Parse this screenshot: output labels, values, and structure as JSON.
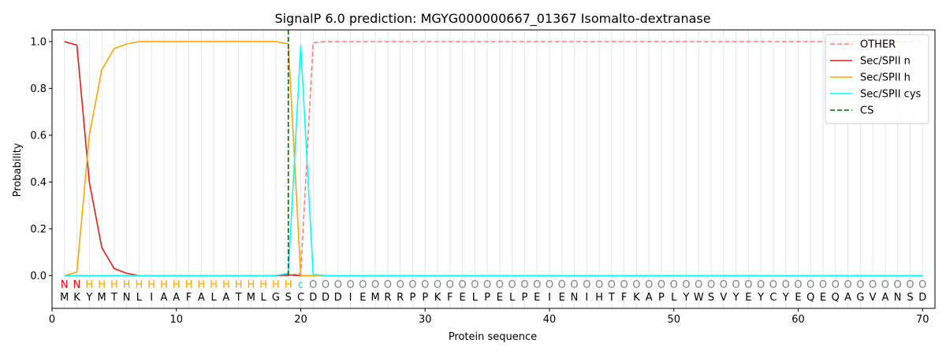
{
  "chart_data": {
    "type": "line",
    "title": "SignalP 6.0 prediction: MGYG000000667_01367 Isomalto-dextranase",
    "xlabel": "Protein sequence",
    "ylabel": "Probability",
    "xlim": [
      0,
      71
    ],
    "ylim": [
      -0.14,
      1.05
    ],
    "xticks": [
      0,
      10,
      20,
      30,
      40,
      50,
      60,
      70
    ],
    "yticks": [
      0.0,
      0.2,
      0.4,
      0.6,
      0.8,
      1.0
    ],
    "xtick_labels": [
      "0",
      "10",
      "20",
      "30",
      "40",
      "50",
      "60",
      "70"
    ],
    "ytick_labels": [
      "0.0",
      "0.2",
      "0.4",
      "0.6",
      "0.8",
      "1.0"
    ],
    "grid": "vertical lines at each residue",
    "legend_position": "top-right",
    "sequence": "MKYMTNLIAAFALATMLGSCDDDIEMRRPPKFELPELPEIENIHTFKAPLYWSVYEYCYEQEQAGVANSD",
    "labels": "NNHHHHHHHHHHHHHHHHHcOOOOOOOOOOOOOOOOOOOOOOOOOOOOOOOOOOOOOOOOOOOOOOOOOO",
    "label_colors": {
      "N": "#ff0000",
      "H": "#ffa500",
      "c": "#00e5e5",
      "O": "#808080"
    },
    "cleavage_site": 19,
    "series": [
      {
        "name": "OTHER",
        "color": "#f08080",
        "dash": "dashed",
        "x": [
          1,
          2,
          3,
          4,
          5,
          6,
          7,
          8,
          9,
          10,
          11,
          12,
          13,
          14,
          15,
          16,
          17,
          18,
          19,
          20,
          21,
          22,
          23,
          24,
          25,
          26,
          27,
          28,
          29,
          30,
          31,
          32,
          33,
          34,
          35,
          36,
          37,
          38,
          39,
          40,
          41,
          42,
          43,
          44,
          45,
          46,
          47,
          48,
          49,
          50,
          51,
          52,
          53,
          54,
          55,
          56,
          57,
          58,
          59,
          60,
          61,
          62,
          63,
          64,
          65,
          66,
          67,
          68,
          69,
          70
        ],
        "y": [
          0,
          0,
          0,
          0,
          0,
          0,
          0,
          0,
          0,
          0,
          0,
          0,
          0,
          0,
          0,
          0,
          0,
          0,
          0,
          0.01,
          0.995,
          1,
          1,
          1,
          1,
          1,
          1,
          1,
          1,
          1,
          1,
          1,
          1,
          1,
          1,
          1,
          1,
          1,
          1,
          1,
          1,
          1,
          1,
          1,
          1,
          1,
          1,
          1,
          1,
          1,
          1,
          1,
          1,
          1,
          1,
          1,
          1,
          1,
          1,
          1,
          1,
          1,
          1,
          1,
          1,
          1,
          1,
          1,
          1,
          1
        ]
      },
      {
        "name": "Sec/SPII n",
        "color": "#e41a1c",
        "dash": "solid",
        "x": [
          1,
          2,
          3,
          4,
          5,
          6,
          7,
          8,
          9,
          10,
          11,
          12,
          13,
          14,
          15,
          16,
          17,
          18,
          19,
          20,
          21,
          22,
          23,
          24,
          25,
          26,
          27,
          28,
          29,
          30,
          31,
          32,
          33,
          34,
          35,
          36,
          37,
          38,
          39,
          40,
          41,
          42,
          43,
          44,
          45,
          46,
          47,
          48,
          49,
          50,
          51,
          52,
          53,
          54,
          55,
          56,
          57,
          58,
          59,
          60,
          61,
          62,
          63,
          64,
          65,
          66,
          67,
          68,
          69,
          70
        ],
        "y": [
          1.0,
          0.985,
          0.4,
          0.12,
          0.03,
          0.01,
          0,
          0,
          0,
          0,
          0,
          0,
          0,
          0,
          0,
          0,
          0,
          0,
          0.003,
          0,
          0,
          0,
          0,
          0,
          0,
          0,
          0,
          0,
          0,
          0,
          0,
          0,
          0,
          0,
          0,
          0,
          0,
          0,
          0,
          0,
          0,
          0,
          0,
          0,
          0,
          0,
          0,
          0,
          0,
          0,
          0,
          0,
          0,
          0,
          0,
          0,
          0,
          0,
          0,
          0,
          0,
          0,
          0,
          0,
          0,
          0,
          0,
          0,
          0,
          0
        ]
      },
      {
        "name": "Sec/SPII h",
        "color": "#ffa500",
        "dash": "solid",
        "x": [
          1,
          2,
          3,
          4,
          5,
          6,
          7,
          8,
          9,
          10,
          11,
          12,
          13,
          14,
          15,
          16,
          17,
          18,
          19,
          20,
          21,
          22,
          23,
          24,
          25,
          26,
          27,
          28,
          29,
          30,
          31,
          32,
          33,
          34,
          35,
          36,
          37,
          38,
          39,
          40,
          41,
          42,
          43,
          44,
          45,
          46,
          47,
          48,
          49,
          50,
          51,
          52,
          53,
          54,
          55,
          56,
          57,
          58,
          59,
          60,
          61,
          62,
          63,
          64,
          65,
          66,
          67,
          68,
          69,
          70
        ],
        "y": [
          0,
          0.015,
          0.6,
          0.88,
          0.97,
          0.99,
          1.0,
          1.0,
          1.0,
          1.0,
          1.0,
          1.0,
          1.0,
          1.0,
          1.0,
          1.0,
          1.0,
          1.0,
          0.99,
          0,
          0,
          0,
          0,
          0,
          0,
          0,
          0,
          0,
          0,
          0,
          0,
          0,
          0,
          0,
          0,
          0,
          0,
          0,
          0,
          0,
          0,
          0,
          0,
          0,
          0,
          0,
          0,
          0,
          0,
          0,
          0,
          0,
          0,
          0,
          0,
          0,
          0,
          0,
          0,
          0,
          0,
          0,
          0,
          0,
          0,
          0,
          0,
          0,
          0,
          0
        ]
      },
      {
        "name": "Sec/SPII cys",
        "color": "#00ffff",
        "dash": "solid",
        "x": [
          1,
          2,
          3,
          4,
          5,
          6,
          7,
          8,
          9,
          10,
          11,
          12,
          13,
          14,
          15,
          16,
          17,
          18,
          19,
          20,
          21,
          22,
          23,
          24,
          25,
          26,
          27,
          28,
          29,
          30,
          31,
          32,
          33,
          34,
          35,
          36,
          37,
          38,
          39,
          40,
          41,
          42,
          43,
          44,
          45,
          46,
          47,
          48,
          49,
          50,
          51,
          52,
          53,
          54,
          55,
          56,
          57,
          58,
          59,
          60,
          61,
          62,
          63,
          64,
          65,
          66,
          67,
          68,
          69,
          70
        ],
        "y": [
          0,
          0,
          0,
          0,
          0,
          0,
          0,
          0,
          0,
          0,
          0,
          0,
          0,
          0,
          0,
          0,
          0,
          0,
          0.01,
          0.985,
          0.005,
          0,
          0,
          0,
          0,
          0,
          0,
          0,
          0,
          0,
          0,
          0,
          0,
          0,
          0,
          0,
          0,
          0,
          0,
          0,
          0,
          0,
          0,
          0,
          0,
          0,
          0,
          0,
          0,
          0,
          0,
          0,
          0,
          0,
          0,
          0,
          0,
          0,
          0,
          0,
          0,
          0,
          0,
          0,
          0,
          0,
          0,
          0,
          0,
          0
        ]
      }
    ],
    "cs_legend": {
      "name": "CS",
      "color": "#006400",
      "dash": "dashed"
    }
  }
}
